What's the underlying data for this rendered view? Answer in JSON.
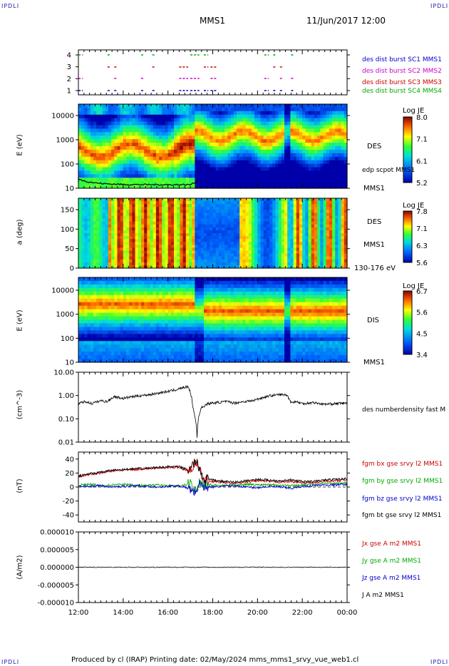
{
  "header": {
    "left_logo": "IPDLI",
    "right_logo": "IPDLI",
    "mission": "MMS1",
    "datetime": "11/Jun/2017 12:00"
  },
  "footer": {
    "left_logo": "IPDLI",
    "right_logo": "IPDLI",
    "text": "Produced by cl (IRAP)   Printing date: 02/May/2024   mms_mms1_srvy_vue_web1.cl"
  },
  "x_axis": {
    "ticks": [
      "12:00",
      "14:00",
      "16:00",
      "18:00",
      "20:00",
      "22:00",
      "00:00"
    ]
  },
  "colors": {
    "mms1": "#0000cc",
    "mms2": "#cc00cc",
    "mms3": "#cc0000",
    "mms4": "#00aa00",
    "bx": "#cc0000",
    "by": "#00aa00",
    "bz": "#0000cc",
    "bt": "#000000"
  },
  "chart_data": [
    {
      "type": "scatter",
      "panel": "burst",
      "y_ticks": [
        "4",
        "3",
        "2",
        "1"
      ],
      "legend": [
        {
          "label": "des dist burst SC1 MMS1",
          "color": "#0000cc"
        },
        {
          "label": "des dist burst SC2 MMS2",
          "color": "#cc00cc"
        },
        {
          "label": "des dist burst SC3 MMS3",
          "color": "#cc0000"
        },
        {
          "label": "des dist burst SC4 MMS4",
          "color": "#00aa00"
        }
      ],
      "segments_hours": [
        [
          12.0,
          12.2
        ],
        [
          13.3,
          13.4
        ],
        [
          13.6,
          13.7
        ],
        [
          14.8,
          14.95
        ],
        [
          15.3,
          15.4
        ],
        [
          16.5,
          16.9
        ],
        [
          17.0,
          17.4
        ],
        [
          17.6,
          17.8
        ],
        [
          17.9,
          18.2
        ],
        [
          20.3,
          20.5
        ],
        [
          20.7,
          20.8
        ],
        [
          21.0,
          21.1
        ],
        [
          21.5,
          21.6
        ]
      ]
    },
    {
      "type": "heatmap",
      "panel": "des_energy",
      "ylabel": "E (eV)",
      "y_ticks": [
        "10000",
        "1000",
        "100",
        "10"
      ],
      "colorbar": {
        "label": "Log JE",
        "ticks": [
          "8.0",
          "7.1",
          "6.1",
          "5.2"
        ]
      },
      "instrument": "DES",
      "overlay_label": "edp scpot MMS1",
      "spacecraft": "MMS1"
    },
    {
      "type": "heatmap",
      "panel": "des_pitch",
      "ylabel": "a (deg)",
      "y_ticks": [
        "150",
        "100",
        "50",
        "0"
      ],
      "colorbar": {
        "label": "Log JE",
        "ticks": [
          "7.8",
          "7.1",
          "6.3",
          "5.6"
        ]
      },
      "instrument": "DES",
      "spacecraft": "MMS1",
      "energy_range": "130-176 eV"
    },
    {
      "type": "heatmap",
      "panel": "dis_energy",
      "ylabel": "E (eV)",
      "y_ticks": [
        "10000",
        "1000",
        "100",
        "10"
      ],
      "colorbar": {
        "label": "Log JE",
        "ticks": [
          "6.7",
          "5.6",
          "4.5",
          "3.4"
        ]
      },
      "instrument": "DIS",
      "spacecraft": "MMS1"
    },
    {
      "type": "line",
      "panel": "density",
      "ylabel": "(cm^-3)",
      "y_ticks": [
        "10.00",
        "1.00",
        "0.10",
        "0.01"
      ],
      "ylim": [
        0.01,
        10
      ],
      "legend": "des numberdensity fast M",
      "x_hours": [
        12.0,
        12.3,
        12.6,
        13.0,
        13.3,
        13.6,
        14.0,
        14.4,
        14.8,
        15.2,
        15.6,
        16.0,
        16.4,
        16.7,
        16.9,
        17.0,
        17.1,
        17.2,
        17.3,
        17.5,
        17.8,
        18.2,
        18.6,
        19.0,
        19.4,
        19.8,
        20.2,
        20.6,
        21.0,
        21.3,
        21.5,
        21.7,
        22.0,
        22.5,
        23.0,
        23.5,
        24.0
      ],
      "y_values": [
        0.45,
        0.55,
        0.45,
        0.6,
        0.55,
        0.9,
        0.75,
        0.9,
        1.0,
        1.1,
        1.3,
        1.5,
        1.8,
        2.2,
        2.4,
        1.4,
        0.35,
        0.12,
        0.015,
        0.3,
        0.45,
        0.5,
        0.55,
        0.48,
        0.55,
        0.6,
        0.8,
        1.0,
        1.1,
        1.05,
        0.5,
        0.55,
        0.45,
        0.5,
        0.42,
        0.45,
        0.48
      ]
    },
    {
      "type": "line",
      "panel": "magnetic_field",
      "ylabel": "(nT)",
      "y_ticks": [
        "40",
        "20",
        "0",
        "-20",
        "-40"
      ],
      "ylim": [
        -50,
        50
      ],
      "x_hours": [
        12.0,
        12.5,
        13.0,
        13.5,
        14.0,
        14.5,
        15.0,
        15.5,
        16.0,
        16.5,
        17.0,
        17.2,
        17.4,
        17.6,
        18.0,
        18.5,
        19.0,
        19.5,
        20.0,
        20.5,
        21.0,
        21.5,
        22.0,
        22.5,
        23.0,
        23.5,
        24.0
      ],
      "series": [
        {
          "name": "fgm bx gse srvy l2 MMS1",
          "color": "#cc0000",
          "values": [
            15,
            18,
            20,
            23,
            24,
            25,
            26,
            27,
            28,
            28,
            22,
            35,
            25,
            10,
            8,
            6,
            5,
            7,
            9,
            8,
            7,
            8,
            6,
            6,
            8,
            9,
            10
          ]
        },
        {
          "name": "fgm by gse srvy l2 MMS1",
          "color": "#00aa00",
          "values": [
            3,
            4,
            2,
            3,
            4,
            3,
            2,
            3,
            2,
            1,
            5,
            -5,
            8,
            4,
            3,
            2,
            3,
            4,
            3,
            4,
            3,
            2,
            3,
            4,
            5,
            5,
            6
          ]
        },
        {
          "name": "fgm bz gse srvy l2 MMS1",
          "color": "#0000cc",
          "values": [
            2,
            1,
            2,
            0,
            1,
            2,
            1,
            0,
            1,
            2,
            -3,
            -8,
            4,
            1,
            0,
            1,
            2,
            0,
            -1,
            1,
            0,
            -2,
            1,
            2,
            3,
            3,
            4
          ]
        },
        {
          "name": "fgm bt gse srvy l2 MMS1",
          "color": "#000000",
          "values": [
            16,
            19,
            21,
            24,
            25,
            26,
            27,
            28,
            29,
            29,
            24,
            38,
            27,
            12,
            10,
            8,
            7,
            9,
            11,
            10,
            9,
            10,
            8,
            8,
            10,
            11,
            12
          ]
        }
      ]
    },
    {
      "type": "line",
      "panel": "current_density",
      "ylabel": "(A/m2)",
      "y_ticks": [
        "0.000010",
        "0.000005",
        "0.000000",
        "-0.000005",
        "-0.000010"
      ],
      "ylim": [
        -1e-05,
        1e-05
      ],
      "series": [
        {
          "name": "Jx gse A m2 MMS1",
          "color": "#cc0000"
        },
        {
          "name": "Jy gse A m2 MMS1",
          "color": "#00aa00"
        },
        {
          "name": "Jz gse A m2 MMS1",
          "color": "#0000cc"
        },
        {
          "name": "J A m2 MMS1",
          "color": "#000000"
        }
      ]
    }
  ]
}
